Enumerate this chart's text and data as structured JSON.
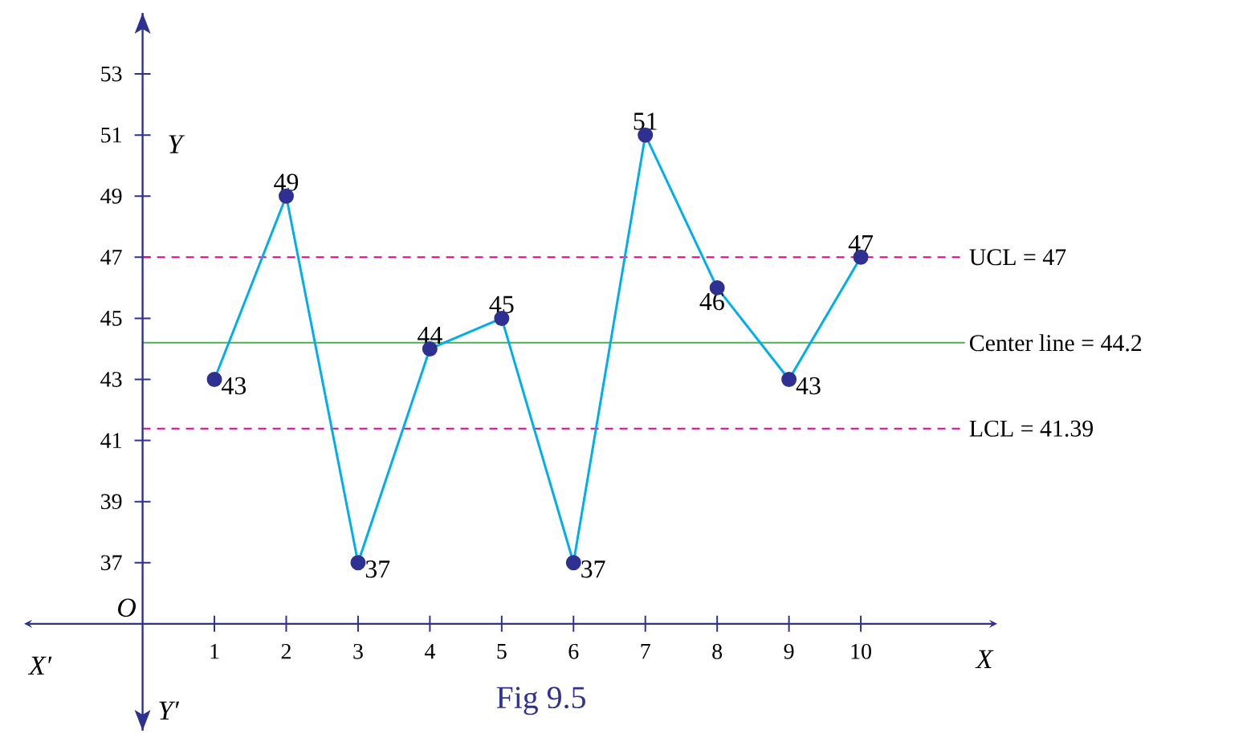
{
  "chart_data": {
    "type": "line",
    "title": "Fig 9.5",
    "x": [
      1,
      2,
      3,
      4,
      5,
      6,
      7,
      8,
      9,
      10
    ],
    "series": [
      {
        "color": "#00aeef",
        "values": [
          43,
          49,
          37,
          44,
          45,
          37,
          51,
          46,
          43,
          47
        ]
      }
    ],
    "data_labels": true,
    "marker": "circle",
    "line_style": "solid",
    "grid": false,
    "xlim": [
      -1.65,
      11.9
    ],
    "ylim": [
      31.5,
      55
    ],
    "xticks": [
      1,
      2,
      3,
      4,
      5,
      6,
      7,
      8,
      9,
      10
    ],
    "yticks": [
      37,
      39,
      41,
      43,
      45,
      47,
      49,
      51,
      53
    ],
    "ref_lines": [
      {
        "axis": "y",
        "value": 47,
        "label": "UCL = 47",
        "color": "#ec008c",
        "line_style": "dashed"
      },
      {
        "axis": "y",
        "value": 44.2,
        "label": "Center line = 44.2",
        "color": "#4caf50",
        "line_style": "solid"
      },
      {
        "axis": "y",
        "value": 41.39,
        "label": "LCL = 41.39",
        "color": "#ec008c",
        "line_style": "dashed"
      }
    ],
    "annotations": [
      "Y",
      "Y′",
      "X",
      "X′",
      "O"
    ]
  }
}
